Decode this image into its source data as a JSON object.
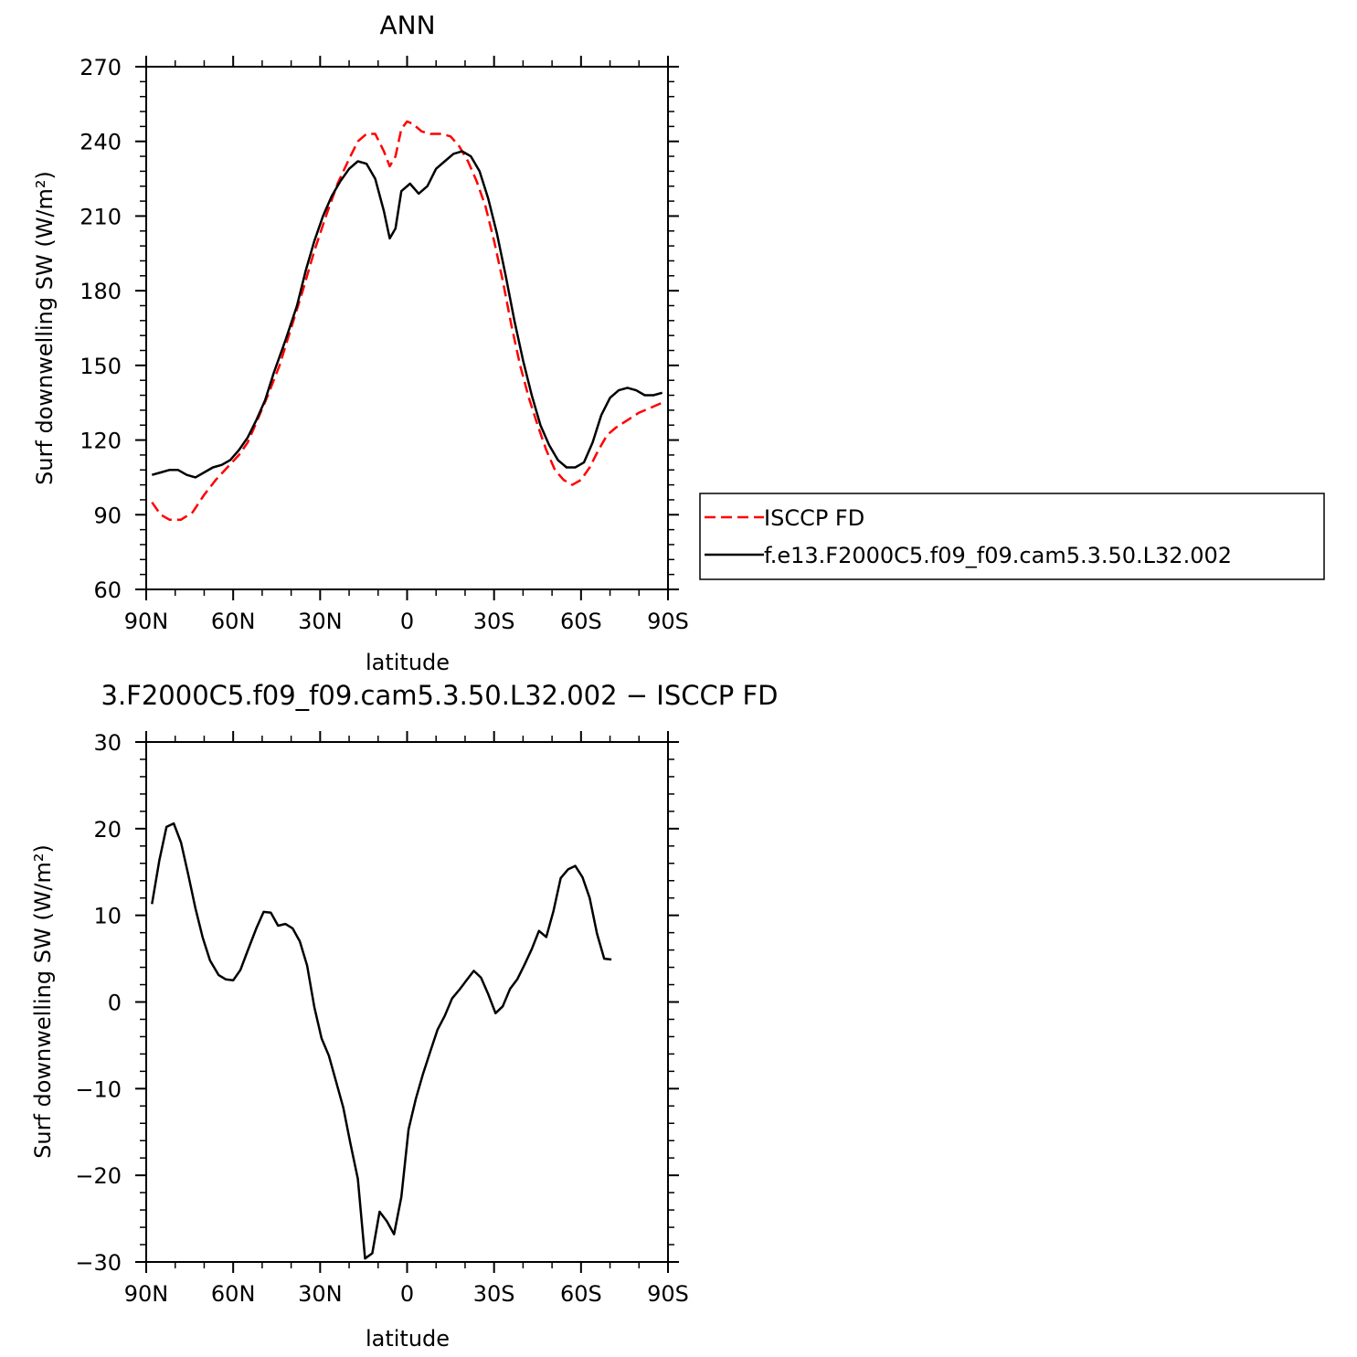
{
  "chart_data": [
    {
      "type": "line",
      "title": "ANN",
      "xlabel": "latitude",
      "ylabel": "Surf downwelling SW (W/m²)",
      "xlim": [
        -90,
        90
      ],
      "ylim": [
        60,
        270
      ],
      "xticks": [
        -90,
        -60,
        -30,
        0,
        30,
        60,
        90
      ],
      "xtick_labels": [
        "90N",
        "60N",
        "30N",
        "0",
        "30S",
        "60S",
        "90S"
      ],
      "yticks": [
        60,
        90,
        120,
        150,
        180,
        210,
        240,
        270
      ],
      "ytick_labels": [
        "60",
        "90",
        "120",
        "150",
        "180",
        "210",
        "240",
        "270"
      ],
      "legend_position": "right",
      "series": [
        {
          "name": "ISCCP FD",
          "color": "#ff0000",
          "dash": "dashed",
          "points": [
            [
              -88,
              95
            ],
            [
              -85,
              90
            ],
            [
              -82,
              88
            ],
            [
              -78,
              88
            ],
            [
              -74,
              91
            ],
            [
              -70,
              98
            ],
            [
              -66,
              104
            ],
            [
              -62,
              109
            ],
            [
              -58,
              114
            ],
            [
              -55,
              119
            ],
            [
              -52,
              127
            ],
            [
              -48,
              138
            ],
            [
              -44,
              150
            ],
            [
              -40,
              165
            ],
            [
              -36,
              180
            ],
            [
              -32,
              196
            ],
            [
              -28,
              210
            ],
            [
              -24,
              223
            ],
            [
              -20,
              233
            ],
            [
              -17,
              240
            ],
            [
              -14,
              243
            ],
            [
              -11,
              243
            ],
            [
              -8,
              236
            ],
            [
              -6,
              230
            ],
            [
              -4,
              234
            ],
            [
              -2,
              245
            ],
            [
              0,
              248
            ],
            [
              2,
              247
            ],
            [
              5,
              244
            ],
            [
              8,
              243
            ],
            [
              12,
              243
            ],
            [
              15,
              242
            ],
            [
              18,
              238
            ],
            [
              21,
              232
            ],
            [
              24,
              224
            ],
            [
              27,
              214
            ],
            [
              30,
              200
            ],
            [
              33,
              184
            ],
            [
              36,
              166
            ],
            [
              39,
              150
            ],
            [
              42,
              137
            ],
            [
              45,
              126
            ],
            [
              48,
              116
            ],
            [
              51,
              108
            ],
            [
              54,
              104
            ],
            [
              57,
              102
            ],
            [
              60,
              104
            ],
            [
              63,
              109
            ],
            [
              66,
              116
            ],
            [
              69,
              122
            ],
            [
              72,
              125
            ],
            [
              76,
              128
            ],
            [
              80,
              131
            ],
            [
              84,
              133
            ],
            [
              88,
              135
            ]
          ]
        },
        {
          "name": "f.e13.F2000C5.f09_f09.cam5.3.50.L32.002",
          "color": "#000000",
          "dash": "solid",
          "points": [
            [
              -88,
              106
            ],
            [
              -85,
              107
            ],
            [
              -82,
              108
            ],
            [
              -79,
              108
            ],
            [
              -76,
              106
            ],
            [
              -73,
              105
            ],
            [
              -70,
              107
            ],
            [
              -67,
              109
            ],
            [
              -64,
              110
            ],
            [
              -61,
              112
            ],
            [
              -58,
              116
            ],
            [
              -55,
              121
            ],
            [
              -52,
              128
            ],
            [
              -49,
              136
            ],
            [
              -46,
              147
            ],
            [
              -42,
              160
            ],
            [
              -38,
              174
            ],
            [
              -35,
              188
            ],
            [
              -32,
              200
            ],
            [
              -29,
              210
            ],
            [
              -26,
              218
            ],
            [
              -23,
              224
            ],
            [
              -20,
              229
            ],
            [
              -17,
              232
            ],
            [
              -14,
              231
            ],
            [
              -11,
              225
            ],
            [
              -8,
              212
            ],
            [
              -6,
              201
            ],
            [
              -4,
              205
            ],
            [
              -2,
              220
            ],
            [
              1,
              223
            ],
            [
              4,
              219
            ],
            [
              7,
              222
            ],
            [
              10,
              229
            ],
            [
              13,
              232
            ],
            [
              16,
              235
            ],
            [
              19,
              236
            ],
            [
              22,
              234
            ],
            [
              25,
              228
            ],
            [
              28,
              217
            ],
            [
              31,
              203
            ],
            [
              34,
              186
            ],
            [
              37,
              168
            ],
            [
              40,
              152
            ],
            [
              43,
              138
            ],
            [
              46,
              126
            ],
            [
              49,
              118
            ],
            [
              52,
              112
            ],
            [
              55,
              109
            ],
            [
              58,
              109
            ],
            [
              61,
              111
            ],
            [
              64,
              119
            ],
            [
              67,
              130
            ],
            [
              70,
              137
            ],
            [
              73,
              140
            ],
            [
              76,
              141
            ],
            [
              79,
              140
            ],
            [
              82,
              138
            ],
            [
              85,
              138
            ],
            [
              88,
              139
            ]
          ]
        }
      ]
    },
    {
      "type": "line",
      "title": "3.F2000C5.f09_f09.cam5.3.50.L32.002 − ISCCP FD",
      "xlabel": "latitude",
      "ylabel": "Surf downwelling SW (W/m²)",
      "xlim": [
        -90,
        90
      ],
      "ylim": [
        -30,
        30
      ],
      "xticks": [
        -90,
        -60,
        -30,
        0,
        30,
        60,
        90
      ],
      "xtick_labels": [
        "90N",
        "60N",
        "30N",
        "0",
        "30S",
        "60S",
        "90S"
      ],
      "yticks": [
        -30,
        -20,
        -10,
        0,
        10,
        20,
        30
      ],
      "ytick_labels": [
        "−30",
        "−20",
        "−10",
        "0",
        "10",
        "20",
        "30"
      ],
      "series": [
        {
          "color": "#000000",
          "dash": "solid",
          "points": [
            [
              -88,
              11.3
            ],
            [
              -85.5,
              16.3
            ],
            [
              -83,
              20.2
            ],
            [
              -80.5,
              20.6
            ],
            [
              -78,
              18.4
            ],
            [
              -75.5,
              14.7
            ],
            [
              -73,
              10.8
            ],
            [
              -70.5,
              7.4
            ],
            [
              -68,
              4.8
            ],
            [
              -65,
              3.1
            ],
            [
              -62.5,
              2.6
            ],
            [
              -60,
              2.5
            ],
            [
              -57.5,
              3.7
            ],
            [
              -55,
              5.9
            ],
            [
              -52,
              8.5
            ],
            [
              -49.5,
              10.4
            ],
            [
              -47,
              10.3
            ],
            [
              -44.5,
              8.8
            ],
            [
              -42,
              9.0
            ],
            [
              -39.5,
              8.5
            ],
            [
              -37,
              7.0
            ],
            [
              -34.5,
              4.2
            ],
            [
              -32,
              -0.6
            ],
            [
              -29.5,
              -4.2
            ],
            [
              -27,
              -6.2
            ],
            [
              -24.5,
              -9.2
            ],
            [
              -22,
              -12.2
            ],
            [
              -19.5,
              -16.4
            ],
            [
              -17,
              -20.4
            ],
            [
              -14.5,
              -29.6
            ],
            [
              -12,
              -29.0
            ],
            [
              -9.5,
              -24.2
            ],
            [
              -7,
              -25.3
            ],
            [
              -4.5,
              -26.8
            ],
            [
              -2,
              -22.5
            ],
            [
              0.5,
              -14.7
            ],
            [
              3,
              -11.2
            ],
            [
              5.5,
              -8.3
            ],
            [
              8,
              -5.7
            ],
            [
              10.5,
              -3.2
            ],
            [
              13,
              -1.6
            ],
            [
              15.5,
              0.4
            ],
            [
              18,
              1.4
            ],
            [
              20.5,
              2.5
            ],
            [
              23,
              3.6
            ],
            [
              25.5,
              2.8
            ],
            [
              28,
              0.9
            ],
            [
              30.5,
              -1.3
            ],
            [
              33,
              -0.5
            ],
            [
              35.5,
              1.5
            ],
            [
              38,
              2.6
            ],
            [
              40.5,
              4.3
            ],
            [
              43,
              6.1
            ],
            [
              45.5,
              8.2
            ],
            [
              48,
              7.5
            ],
            [
              50.5,
              10.5
            ],
            [
              53,
              14.3
            ],
            [
              55.5,
              15.3
            ],
            [
              58,
              15.7
            ],
            [
              60.5,
              14.4
            ],
            [
              63,
              12.0
            ],
            [
              65.5,
              7.9
            ],
            [
              68,
              5.0
            ],
            [
              70.5,
              4.9
            ]
          ]
        }
      ]
    }
  ]
}
